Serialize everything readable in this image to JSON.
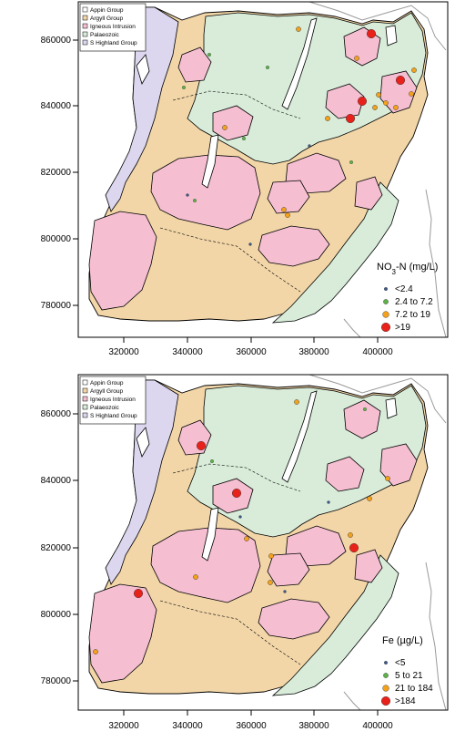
{
  "colors": {
    "appin": "#ffffff",
    "argyll": "#f2d6a8",
    "igneous": "#f5bfd1",
    "palaeozoic": "#d8ecd9",
    "highland": "#dcd6ee",
    "border": "#000000",
    "coast": "#9a9a9a"
  },
  "geology_legend": [
    {
      "label": "Appin Group",
      "color": "#ffffff"
    },
    {
      "label": "Argyll Group",
      "color": "#f2d6a8"
    },
    {
      "label": "Igneous Intrusion",
      "color": "#f5bfd1"
    },
    {
      "label": "Palaeozoic",
      "color": "#d8ecd9"
    },
    {
      "label": "S Highland Group",
      "color": "#dcd6ee"
    }
  ],
  "maps": [
    {
      "x_ticks": [
        "320000",
        "340000",
        "360000",
        "380000",
        "400000"
      ],
      "y_ticks": [
        "860000",
        "840000",
        "820000",
        "800000",
        "780000"
      ],
      "title_pre": "NO",
      "title_sub": "3",
      "title_post": "-N (mg/L)",
      "classes": [
        {
          "label": "<2.4",
          "color": "#3d5a8a",
          "size": 1.8
        },
        {
          "label": "2.4 to 7.2",
          "color": "#5fb24a",
          "size": 2.6
        },
        {
          "label": "7.2 to 19",
          "color": "#f4a21b",
          "size": 3.4
        },
        {
          "label": ">19",
          "color": "#e8221b",
          "size": 4.8
        }
      ]
    },
    {
      "x_ticks": [
        "320000",
        "340000",
        "360000",
        "380000",
        "400000"
      ],
      "y_ticks": [
        "860000",
        "840000",
        "820000",
        "800000",
        "780000"
      ],
      "title_pre": "Fe (µg/L)",
      "title_sub": "",
      "title_post": "",
      "classes": [
        {
          "label": "<5",
          "color": "#3d5a8a",
          "size": 1.8
        },
        {
          "label": "5 to 21",
          "color": "#5fb24a",
          "size": 2.6
        },
        {
          "label": "21 to 184",
          "color": "#f4a21b",
          "size": 3.4
        },
        {
          "label": ">184",
          "color": "#e8221b",
          "size": 4.8
        }
      ]
    }
  ]
}
